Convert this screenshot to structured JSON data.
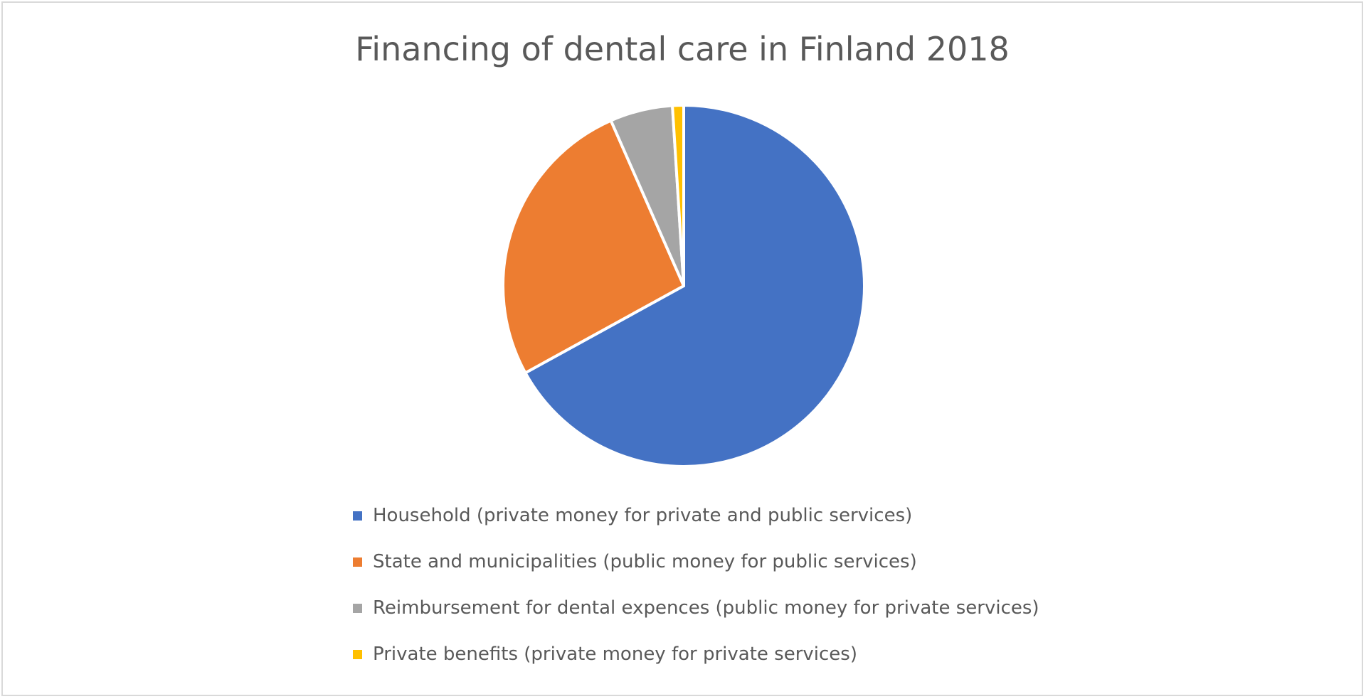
{
  "chart_data": {
    "type": "pie",
    "title": "Financing of dental care in Finland 2018",
    "legend_position": "bottom",
    "categories": [
      "Household (private money for private and public services)",
      "State and municipalities (public money for public services)",
      "Reimbursement for dental expences (public money for private services)",
      "Private benefits (private money for private services)"
    ],
    "values": [
      67.0,
      26.4,
      5.6,
      1.0
    ],
    "colors": [
      "#4472c4",
      "#ed7d31",
      "#a5a5a5",
      "#ffc000"
    ],
    "start_angle": "12 o'clock, clockwise"
  }
}
